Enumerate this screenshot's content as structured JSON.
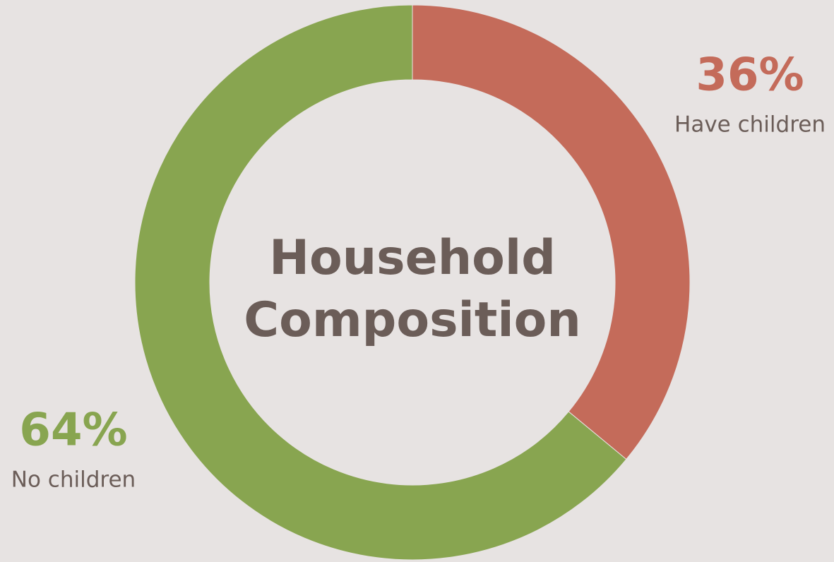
{
  "chart_data": {
    "type": "donut",
    "title": "Household Composition",
    "categories": [
      "Have children",
      "No children"
    ],
    "values": [
      36,
      64
    ],
    "value_labels": [
      "36%",
      "64%"
    ],
    "colors": [
      "#c46b5a",
      "#88a550"
    ]
  }
}
